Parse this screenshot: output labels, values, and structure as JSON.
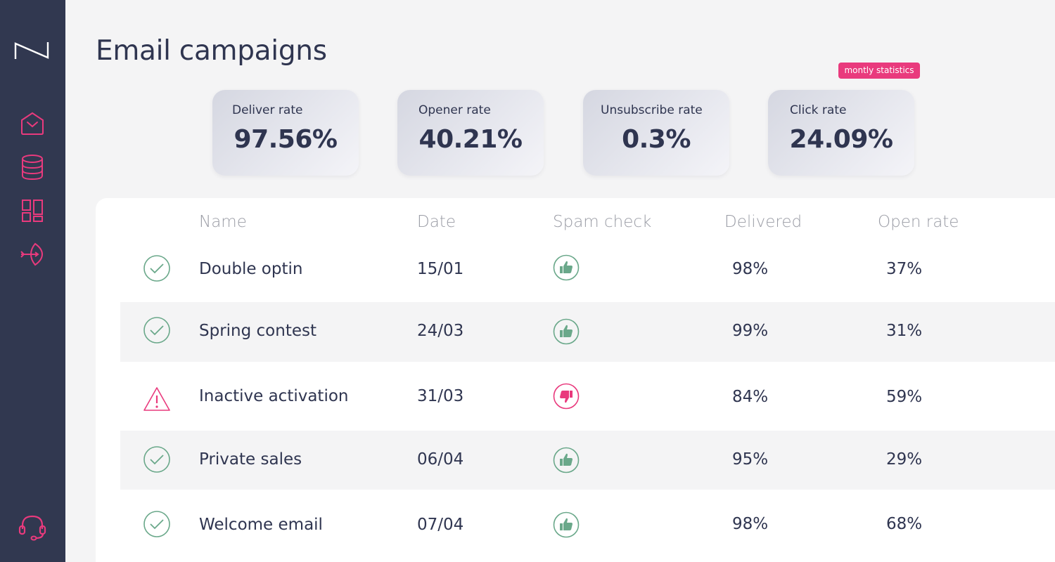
{
  "app": {
    "page_title": "Email campaigns",
    "badge": "montly statistics"
  },
  "sidebar": {
    "logo_icon": "logo-icon",
    "items": [
      {
        "icon": "inbox-icon"
      },
      {
        "icon": "database-icon"
      },
      {
        "icon": "dashboard-icon"
      },
      {
        "icon": "target-arrow-icon"
      }
    ],
    "footer_icon": "headset-icon",
    "accent_color": "#e93a7d"
  },
  "stats": [
    {
      "label": "Deliver rate",
      "value": "97.56%"
    },
    {
      "label": "Opener rate",
      "value": "40.21%"
    },
    {
      "label": "Unsubscribe rate",
      "value": "0.3%"
    },
    {
      "label": "Click rate",
      "value": "24.09%"
    }
  ],
  "table": {
    "columns": [
      "Name",
      "Date",
      "Spam check",
      "Delivered",
      "Open rate"
    ],
    "rows": [
      {
        "status": "check-circle-icon",
        "name": "Double optin",
        "date": "15/01",
        "spam": "thumbs-up-icon",
        "delivered": "98%",
        "open_rate": "37%"
      },
      {
        "status": "check-circle-icon",
        "name": "Spring contest",
        "date": "24/03",
        "spam": "thumbs-up-icon",
        "delivered": "99%",
        "open_rate": "31%"
      },
      {
        "status": "warning-triangle-icon",
        "name": "Inactive activation",
        "date": "31/03",
        "spam": "thumbs-down-icon",
        "delivered": "84%",
        "open_rate": "59%"
      },
      {
        "status": "check-circle-icon",
        "name": "Private sales",
        "date": "06/04",
        "spam": "thumbs-up-icon",
        "delivered": "95%",
        "open_rate": "29%"
      },
      {
        "status": "check-circle-icon",
        "name": "Welcome email",
        "date": "07/04",
        "spam": "thumbs-up-icon",
        "delivered": "98%",
        "open_rate": "68%"
      }
    ]
  },
  "colors": {
    "sidebar": "#313850",
    "text": "#2f3550",
    "success": "#6aa88a",
    "danger": "#e93a7d"
  }
}
